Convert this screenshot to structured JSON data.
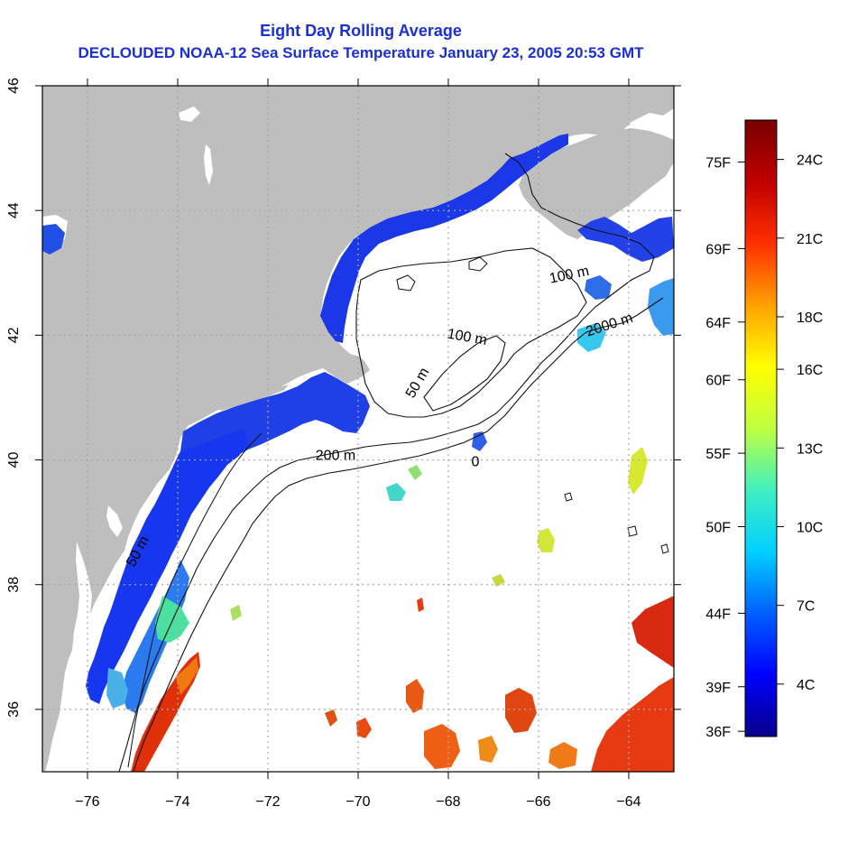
{
  "titles": {
    "line1": "Eight Day Rolling Average",
    "line2": "DECLOUDED NOAA-12 Sea Surface Temperature January 23, 2005 20:53 GMT"
  },
  "map": {
    "x_ticks": [
      {
        "value": -76,
        "label": "−76"
      },
      {
        "value": -74,
        "label": "−74"
      },
      {
        "value": -72,
        "label": "−72"
      },
      {
        "value": -70,
        "label": "−70"
      },
      {
        "value": -68,
        "label": "−68"
      },
      {
        "value": -66,
        "label": "−66"
      },
      {
        "value": -64,
        "label": "−64"
      }
    ],
    "y_ticks": [
      {
        "value": 36,
        "label": "36"
      },
      {
        "value": 38,
        "label": "38"
      },
      {
        "value": 40,
        "label": "40"
      },
      {
        "value": 42,
        "label": "42"
      },
      {
        "value": 44,
        "label": "44"
      },
      {
        "value": 46,
        "label": "46"
      }
    ],
    "lon_range": [
      -77,
      -63
    ],
    "lat_range": [
      35,
      46
    ],
    "grid": true,
    "land_color": "#bebebe",
    "contour_labels": [
      {
        "text": "100 m",
        "lon": -65.3,
        "lat": 42.9,
        "rotate": -12
      },
      {
        "text": "2000 m",
        "lon": -64.4,
        "lat": 42.1,
        "rotate": -18
      },
      {
        "text": "100 m",
        "lon": -67.6,
        "lat": 41.9,
        "rotate": 10
      },
      {
        "text": "50 m",
        "lon": -68.6,
        "lat": 41.2,
        "rotate": -60
      },
      {
        "text": "200 m",
        "lon": -70.5,
        "lat": 40.0,
        "rotate": 0
      },
      {
        "text": "0",
        "lon": -67.4,
        "lat": 39.9,
        "rotate": 0
      },
      {
        "text": "50 m",
        "lon": -74.8,
        "lat": 38.5,
        "rotate": -62
      }
    ]
  },
  "colorbar": {
    "f_labels": [
      {
        "label": "75F",
        "c": 23.9
      },
      {
        "label": "69F",
        "c": 20.6
      },
      {
        "label": "64F",
        "c": 17.8
      },
      {
        "label": "60F",
        "c": 15.6
      },
      {
        "label": "55F",
        "c": 12.8
      },
      {
        "label": "50F",
        "c": 10.0
      },
      {
        "label": "44F",
        "c": 6.7
      },
      {
        "label": "39F",
        "c": 3.9
      },
      {
        "label": "36F",
        "c": 2.2
      }
    ],
    "c_labels": [
      {
        "label": "24C",
        "c": 24
      },
      {
        "label": "21C",
        "c": 21
      },
      {
        "label": "18C",
        "c": 18
      },
      {
        "label": "16C",
        "c": 16
      },
      {
        "label": "13C",
        "c": 13
      },
      {
        "label": "10C",
        "c": 10
      },
      {
        "label": "7C",
        "c": 7
      },
      {
        "label": "4C",
        "c": 4
      }
    ],
    "range_c": [
      2,
      25.5
    ],
    "colors": [
      "#08008a",
      "#0000ff",
      "#0060ff",
      "#00d0ff",
      "#40f0c0",
      "#c0ff40",
      "#ffff00",
      "#ffa000",
      "#ff3000",
      "#c00000",
      "#780000"
    ]
  }
}
